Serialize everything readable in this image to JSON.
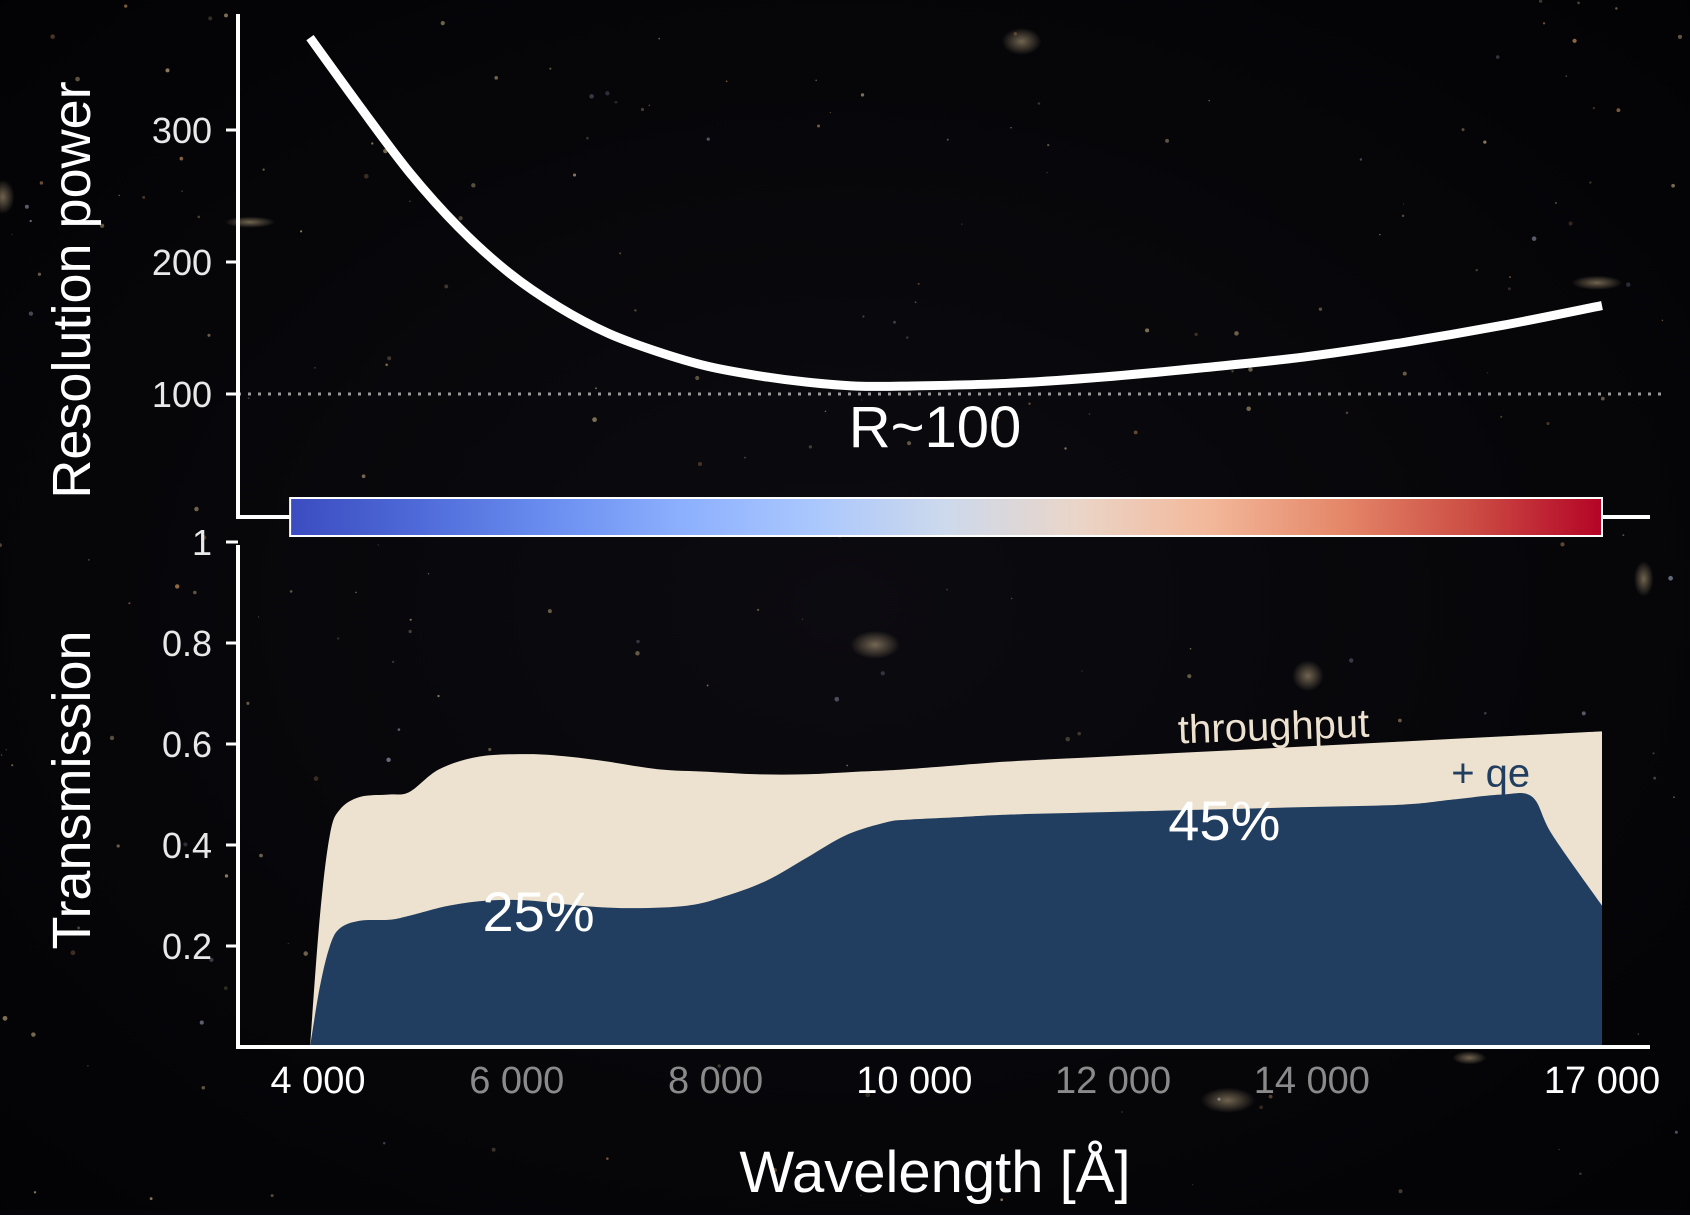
{
  "chart_data": [
    {
      "type": "line",
      "ylabel": "Resolution power",
      "y_ticks": [
        100,
        200,
        300
      ],
      "ylim": [
        10,
        380
      ],
      "xlim": [
        4000,
        17000
      ],
      "grid": false,
      "reference_line": {
        "y": 100,
        "style": "dotted",
        "label": "R~100"
      },
      "series": [
        {
          "x": [
            4000,
            4500,
            5000,
            5500,
            6000,
            6500,
            7000,
            7500,
            8000,
            8500,
            9000,
            9500,
            10000,
            11000,
            12000,
            13000,
            14000,
            15000,
            16000,
            17000
          ],
          "values": [
            370,
            318,
            268,
            226,
            192,
            166,
            146,
            132,
            121,
            114,
            109,
            106,
            106,
            108,
            113,
            120,
            128,
            139,
            152,
            167
          ],
          "color": "#ffffff"
        }
      ],
      "colorbar": {
        "x_range": [
          3800,
          17000
        ],
        "colors": [
          "#3b4cc0",
          "#4f6bd9",
          "#6a8ff0",
          "#8db0fe",
          "#aac7fd",
          "#cdd9ec",
          "#ead5c8",
          "#f3b89a",
          "#e5886a",
          "#cc4d44",
          "#b40426"
        ]
      }
    },
    {
      "type": "area",
      "ylabel": "Transmission",
      "xlabel": "Wavelength [Å]",
      "y_ticks": [
        "0.2",
        "0.4",
        "0.6",
        "0.8",
        "1"
      ],
      "ylim": [
        0,
        1
      ],
      "xlim": [
        4000,
        17000
      ],
      "x_ticks": [
        {
          "value": 4000,
          "label": "4 000",
          "emphasis": true
        },
        {
          "value": 6000,
          "label": "6 000",
          "emphasis": false
        },
        {
          "value": 8000,
          "label": "8 000",
          "emphasis": false
        },
        {
          "value": 10000,
          "label": "10 000",
          "emphasis": true
        },
        {
          "value": 12000,
          "label": "12 000",
          "emphasis": false
        },
        {
          "value": 14000,
          "label": "14 000",
          "emphasis": false
        },
        {
          "value": 17000,
          "label": "17 000",
          "emphasis": true
        }
      ],
      "grid": false,
      "series": [
        {
          "name": "throughput",
          "color": "#ede2cf",
          "x": [
            4000,
            4100,
            4200,
            4300,
            4500,
            4800,
            5000,
            5300,
            5700,
            6200,
            6600,
            7000,
            7500,
            8000,
            8500,
            9000,
            9500,
            10000,
            11000,
            12000,
            13000,
            14000,
            15000,
            16000,
            17000
          ],
          "values": [
            0.0,
            0.26,
            0.42,
            0.47,
            0.495,
            0.5,
            0.505,
            0.55,
            0.575,
            0.58,
            0.575,
            0.565,
            0.55,
            0.545,
            0.54,
            0.54,
            0.545,
            0.55,
            0.565,
            0.575,
            0.585,
            0.595,
            0.605,
            0.615,
            0.625
          ]
        },
        {
          "name": "+ qe",
          "color": "#213e60",
          "x": [
            4000,
            4100,
            4200,
            4300,
            4500,
            4800,
            5000,
            5400,
            5800,
            6200,
            6700,
            7200,
            7800,
            8200,
            8600,
            9000,
            9400,
            9800,
            10000,
            10500,
            11000,
            12000,
            13000,
            14000,
            15000,
            15500,
            16000,
            16300,
            16500,
            17000
          ],
          "values": [
            0.0,
            0.12,
            0.2,
            0.235,
            0.25,
            0.252,
            0.26,
            0.28,
            0.29,
            0.29,
            0.28,
            0.275,
            0.28,
            0.3,
            0.33,
            0.375,
            0.42,
            0.445,
            0.45,
            0.455,
            0.46,
            0.465,
            0.47,
            0.475,
            0.48,
            0.49,
            0.5,
            0.495,
            0.42,
            0.28
          ]
        }
      ],
      "annotations": [
        {
          "text": "25%",
          "x": 6300,
          "y": 0.23
        },
        {
          "text": "45%",
          "x": 13200,
          "y": 0.41
        }
      ]
    }
  ]
}
